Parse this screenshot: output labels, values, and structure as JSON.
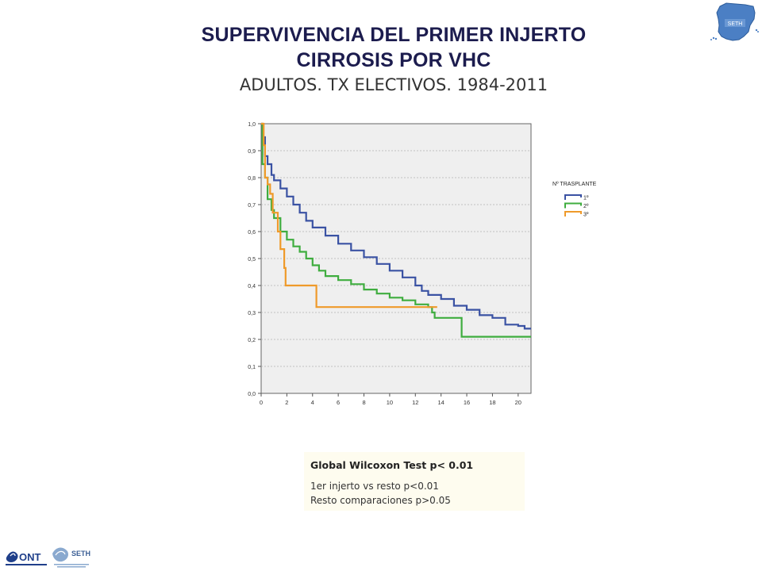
{
  "slide": {
    "title_line1": "SUPERVIVENCIA DEL PRIMER INJERTO",
    "title_line2": "CIRROSIS POR VHC",
    "subtitle": "ADULTOS. TX ELECTIVOS. 1984-2011"
  },
  "stats": {
    "line1": "Global Wilcoxon Test  p< 0.01",
    "line2": "1er injerto vs resto p<0.01",
    "line3": "Resto comparaciones p>0.05"
  },
  "logos": {
    "map_text": "SETH",
    "ont_text": "ONT",
    "seth_text": "SETH"
  },
  "colors": {
    "plot_bg": "#efefef",
    "series1": "#3a52a3",
    "series2": "#3fad3f",
    "series3": "#ef9a2a",
    "map_blue": "#4b7fc4"
  },
  "chart_data": {
    "type": "line",
    "xlim": [
      0,
      21
    ],
    "ylim": [
      0,
      1
    ],
    "x_ticks": [
      "0",
      "2",
      "4",
      "6",
      "8",
      "10",
      "12",
      "14",
      "16",
      "18",
      "20"
    ],
    "y_ticks": [
      "0,0",
      "0,1",
      "0,2",
      "0,3",
      "0,4",
      "0,5",
      "0,6",
      "0,7",
      "0,8",
      "0,9",
      "1,0"
    ],
    "grid": "horizontal dashed",
    "legend_title": "Nº TRASPLANTE",
    "legend_position": "right",
    "series": [
      {
        "name": "1º",
        "color": "#3a52a3",
        "points": [
          [
            0,
            1.0
          ],
          [
            0.1,
            0.95
          ],
          [
            0.3,
            0.88
          ],
          [
            0.5,
            0.85
          ],
          [
            0.8,
            0.81
          ],
          [
            1,
            0.79
          ],
          [
            1.5,
            0.76
          ],
          [
            2,
            0.73
          ],
          [
            2.5,
            0.7
          ],
          [
            3,
            0.67
          ],
          [
            3.5,
            0.64
          ],
          [
            4,
            0.615
          ],
          [
            5,
            0.585
          ],
          [
            6,
            0.555
          ],
          [
            7,
            0.53
          ],
          [
            8,
            0.505
          ],
          [
            9,
            0.48
          ],
          [
            10,
            0.455
          ],
          [
            11,
            0.43
          ],
          [
            12,
            0.4
          ],
          [
            12.5,
            0.38
          ],
          [
            13,
            0.365
          ],
          [
            14,
            0.35
          ],
          [
            15,
            0.325
          ],
          [
            16,
            0.31
          ],
          [
            17,
            0.29
          ],
          [
            18,
            0.28
          ],
          [
            19,
            0.255
          ],
          [
            20,
            0.25
          ],
          [
            20.5,
            0.24
          ],
          [
            21,
            0.24
          ]
        ]
      },
      {
        "name": "2º",
        "color": "#3fad3f",
        "points": [
          [
            0,
            1.0
          ],
          [
            0.1,
            0.85
          ],
          [
            0.3,
            0.8
          ],
          [
            0.5,
            0.72
          ],
          [
            0.8,
            0.68
          ],
          [
            1,
            0.65
          ],
          [
            1.5,
            0.6
          ],
          [
            2,
            0.57
          ],
          [
            2.5,
            0.545
          ],
          [
            3,
            0.525
          ],
          [
            3.5,
            0.5
          ],
          [
            4,
            0.475
          ],
          [
            4.5,
            0.455
          ],
          [
            5,
            0.435
          ],
          [
            6,
            0.42
          ],
          [
            7,
            0.405
          ],
          [
            8,
            0.385
          ],
          [
            9,
            0.37
          ],
          [
            10,
            0.355
          ],
          [
            11,
            0.345
          ],
          [
            12,
            0.33
          ],
          [
            13,
            0.32
          ],
          [
            13.3,
            0.3
          ],
          [
            13.5,
            0.28
          ],
          [
            15.5,
            0.28
          ],
          [
            15.6,
            0.21
          ],
          [
            21,
            0.21
          ]
        ]
      },
      {
        "name": "3º",
        "color": "#ef9a2a",
        "points": [
          [
            0,
            1.0
          ],
          [
            0.2,
            0.92
          ],
          [
            0.3,
            0.8
          ],
          [
            0.5,
            0.8
          ],
          [
            0.5,
            0.775
          ],
          [
            0.7,
            0.775
          ],
          [
            0.7,
            0.74
          ],
          [
            0.9,
            0.74
          ],
          [
            0.9,
            0.67
          ],
          [
            1.3,
            0.67
          ],
          [
            1.3,
            0.6
          ],
          [
            1.5,
            0.6
          ],
          [
            1.5,
            0.535
          ],
          [
            1.8,
            0.535
          ],
          [
            1.8,
            0.465
          ],
          [
            1.9,
            0.465
          ],
          [
            1.9,
            0.4
          ],
          [
            4.3,
            0.4
          ],
          [
            4.3,
            0.32
          ],
          [
            13.7,
            0.32
          ]
        ]
      }
    ]
  }
}
